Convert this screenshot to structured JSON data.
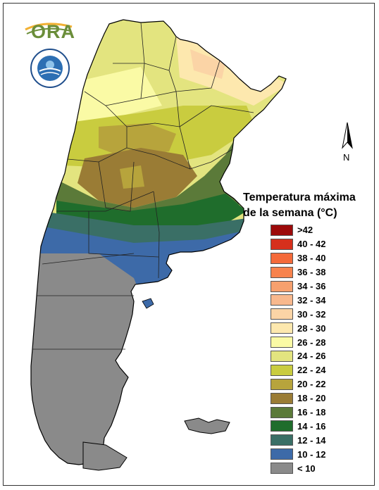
{
  "logo": {
    "ora_text": "ORA",
    "seal_icon": "smn-seal-icon"
  },
  "north_arrow": {
    "label": "N"
  },
  "legend": {
    "title_line1": "Temperatura máxima",
    "title_line2": "de la semana (°C)",
    "items": [
      {
        "label": ">42",
        "color": "#9c0a0a"
      },
      {
        "label": "40 - 42",
        "color": "#d6301c"
      },
      {
        "label": "38 - 40",
        "color": "#f46a3a"
      },
      {
        "label": "36 - 38",
        "color": "#f7824c"
      },
      {
        "label": "34 - 36",
        "color": "#f6a06e"
      },
      {
        "label": "32 - 34",
        "color": "#f8b88d"
      },
      {
        "label": "30 - 32",
        "color": "#fbd4a6"
      },
      {
        "label": "28 - 30",
        "color": "#fde8ae"
      },
      {
        "label": "26 - 28",
        "color": "#fafaa5"
      },
      {
        "label": "24 - 26",
        "color": "#e3e47f"
      },
      {
        "label": "22 - 24",
        "color": "#c9cc3f"
      },
      {
        "label": "20 - 22",
        "color": "#b7a43c"
      },
      {
        "label": "18 - 20",
        "color": "#9a7c35"
      },
      {
        "label": "16 - 18",
        "color": "#5b7a39"
      },
      {
        "label": "14 - 16",
        "color": "#1f6d2c"
      },
      {
        "label": "12 - 14",
        "color": "#3a6f66"
      },
      {
        "label": "10 - 12",
        "color": "#3d6aa8"
      },
      {
        "label": "< 10",
        "color": "#8a8a8a"
      }
    ]
  }
}
